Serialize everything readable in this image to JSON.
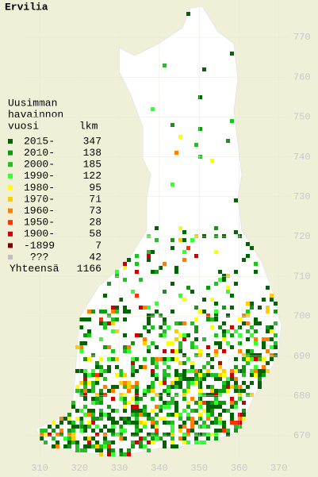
{
  "title": "Ervilia",
  "legend": {
    "heading": [
      "Uusimman",
      "havainnon",
      "vuosi"
    ],
    "count_heading": "lkm",
    "rows": [
      {
        "label": "2015-",
        "count": 347,
        "color": "#006400"
      },
      {
        "label": "2010-",
        "count": 138,
        "color": "#119a11"
      },
      {
        "label": "2000-",
        "count": 185,
        "color": "#22c022"
      },
      {
        "label": "1990-",
        "count": 122,
        "color": "#33ff33"
      },
      {
        "label": "1980-",
        "count": 95,
        "color": "#ffff00"
      },
      {
        "label": "1970-",
        "count": 71,
        "color": "#ffcc00"
      },
      {
        "label": "1960-",
        "count": 73,
        "color": "#ff8000"
      },
      {
        "label": "1950-",
        "count": 28,
        "color": "#ff3300"
      },
      {
        "label": "1900-",
        "count": 58,
        "color": "#cc0000"
      },
      {
        "label": "-1899",
        "count": 7,
        "color": "#800000"
      },
      {
        "label": "???",
        "count": 42,
        "color": "#c0c0c0"
      }
    ],
    "total_label": "Yhteensä",
    "total": 1166
  },
  "grid": {
    "x_labels": [
      310,
      320,
      330,
      340,
      350,
      360,
      370
    ],
    "y_labels": [
      670,
      680,
      690,
      700,
      710,
      720,
      730,
      740,
      750,
      760,
      770
    ]
  }
}
